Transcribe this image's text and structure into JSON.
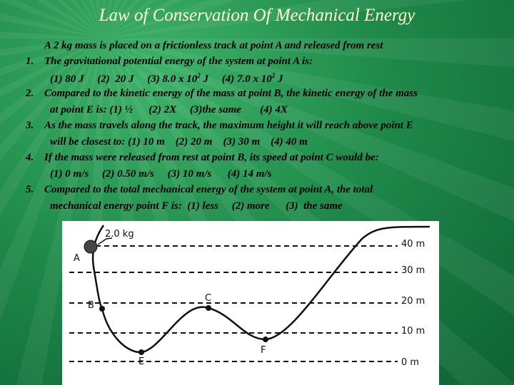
{
  "title": "Law of Conservation Of Mechanical Energy",
  "intro": "A 2 kg mass is placed on a frictionless track at point A and released from rest",
  "questions": [
    {
      "number": "1.",
      "lines": [
        [
          {
            "text": "The gravitational potential energy of the system at point A is:"
          }
        ],
        [
          {
            "text": "(1) 80 J     (2)  20 J     (3) 8.0 x 10"
          },
          {
            "sup": "2"
          },
          {
            "text": " J     (4) 7.0 x 10"
          },
          {
            "sup": "2"
          },
          {
            "text": " J"
          }
        ]
      ]
    },
    {
      "number": "2.",
      "lines": [
        [
          {
            "text": "Compared to the kinetic energy of the mass at point B, the kinetic energy of the mass"
          }
        ],
        [
          {
            "text": "at point E is: (1) ½      (2) 2X     (3)the same       (4) 4X"
          }
        ]
      ]
    },
    {
      "number": "3.",
      "lines": [
        [
          {
            "text": "As the mass travels along the track, the maximum height it will reach above point E"
          }
        ],
        [
          {
            "text": "will be closest to: (1) 10 m    (2) 20 m    (3) 30 m    (4) 40 m"
          }
        ]
      ]
    },
    {
      "number": "4.",
      "lines": [
        [
          {
            "text": "If the mass were released from rest at point B, its speed at point C would be:"
          }
        ],
        [
          {
            "text": "(1) 0 m/s     (2) 0.50 m/s     (3) 10 m/s      (4) 14 m/s"
          }
        ]
      ]
    },
    {
      "number": "5.",
      "lines": [
        [
          {
            "text": "Compared to the total mechanical energy of the system at point A, the total"
          }
        ],
        [
          {
            "text": "mechanical energy point F is:  (1) less     (2) more      (3)  the same"
          }
        ]
      ]
    }
  ],
  "diagram": {
    "mass_label": "2.0 kg",
    "points": [
      "A",
      "B",
      "C",
      "E",
      "F"
    ],
    "heights": [
      "40 m",
      "30 m",
      "20 m",
      "10 m",
      "0 m"
    ]
  }
}
